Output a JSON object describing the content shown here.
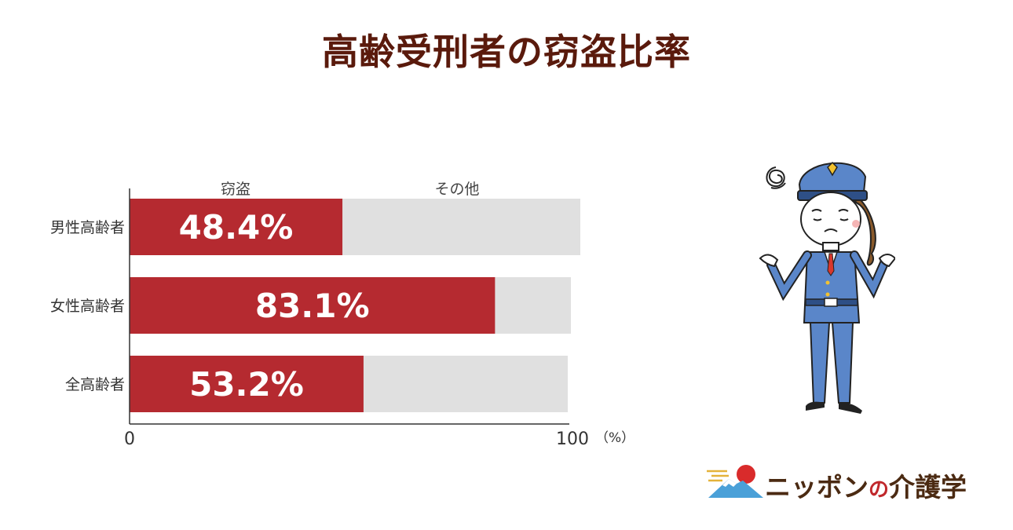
{
  "title": "高齢受刑者の窃盗比率",
  "chart_data": {
    "type": "bar",
    "orientation": "horizontal",
    "stacked": true,
    "title": "高齢受刑者の窃盗比率",
    "categories": [
      "男性高齢者",
      "女性高齢者",
      "全高齢者"
    ],
    "series": [
      {
        "name": "窃盗",
        "values": [
          48.4,
          83.1,
          53.2
        ],
        "color": "#b52a30"
      },
      {
        "name": "その他",
        "values": [
          51.6,
          16.9,
          46.8
        ],
        "color": "#e0e0e0"
      }
    ],
    "value_labels": [
      "48.4%",
      "83.1%",
      "53.2%"
    ],
    "xlim": [
      0,
      100
    ],
    "x_ticks": [
      "0",
      "100"
    ],
    "x_unit": "（%）",
    "grid": false
  },
  "logo": {
    "text": "ニッポン",
    "particle": "の",
    "suffix": "介護学"
  },
  "illustration": {
    "icon": "confused-police-officer-icon"
  }
}
